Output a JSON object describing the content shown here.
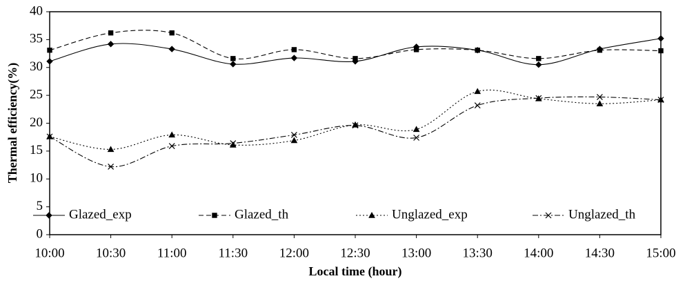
{
  "chart_data": {
    "type": "line",
    "x_label": "Local time (hour)",
    "y_label": "Thermal efficiency(%)",
    "categories": [
      "10:00",
      "10:30",
      "11:00",
      "11:30",
      "12:00",
      "12:30",
      "13:00",
      "13:30",
      "14:00",
      "14:30",
      "15:00"
    ],
    "series": [
      {
        "name": "Glazed_exp",
        "color": "#000000",
        "values": [
          31.1,
          34.2,
          33.3,
          30.6,
          31.7,
          31.1,
          33.7,
          33.1,
          30.5,
          33.3,
          35.2
        ]
      },
      {
        "name": "Glazed_th",
        "color": "#000000",
        "values": [
          33.1,
          36.2,
          36.2,
          31.6,
          33.2,
          31.6,
          33.2,
          33.1,
          31.6,
          33.1,
          33.0
        ]
      },
      {
        "name": "Unglazed_exp",
        "color": "#000000",
        "values": [
          17.6,
          15.3,
          17.9,
          16.1,
          16.9,
          19.7,
          18.9,
          25.7,
          24.4,
          23.5,
          24.2
        ]
      },
      {
        "name": "Unglazed_th",
        "color": "#000000",
        "values": [
          17.6,
          12.2,
          15.9,
          16.4,
          17.9,
          19.6,
          17.4,
          23.2,
          24.5,
          24.7,
          24.2
        ]
      }
    ],
    "ylim": [
      0,
      40
    ],
    "yticks": [
      0,
      5,
      10,
      15,
      20,
      25,
      30,
      35,
      40
    ],
    "legend": "bottom",
    "grid": false
  }
}
